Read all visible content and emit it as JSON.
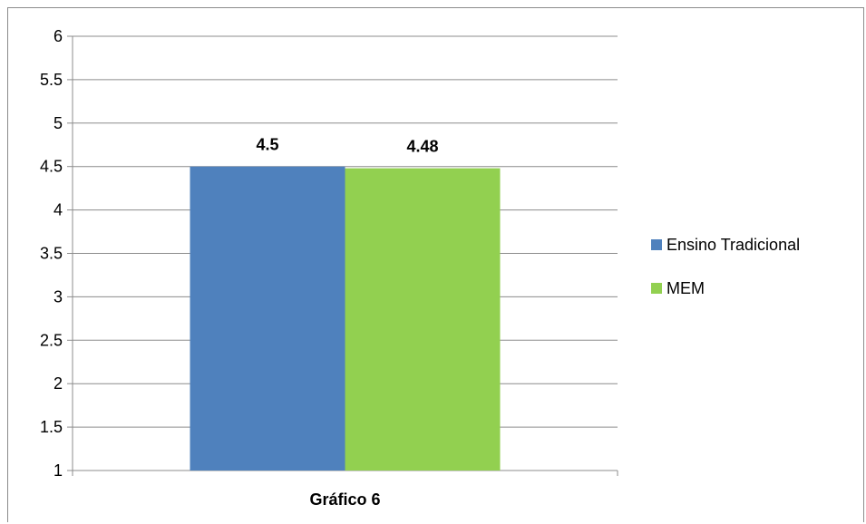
{
  "chart_data": {
    "type": "bar",
    "categories": [
      "Gráfico 6"
    ],
    "series": [
      {
        "name": "Ensino Tradicional",
        "values": [
          4.5
        ],
        "color": "#4f81bd"
      },
      {
        "name": "MEM",
        "values": [
          4.48
        ],
        "color": "#92d050"
      }
    ],
    "data_labels": [
      "4.5",
      "4.48"
    ],
    "ylim": [
      1,
      6
    ],
    "yticks": [
      "1",
      "1.5",
      "2",
      "2.5",
      "3",
      "3.5",
      "4",
      "4.5",
      "5",
      "5.5",
      "6"
    ],
    "grid": true,
    "legend_position": "right"
  }
}
